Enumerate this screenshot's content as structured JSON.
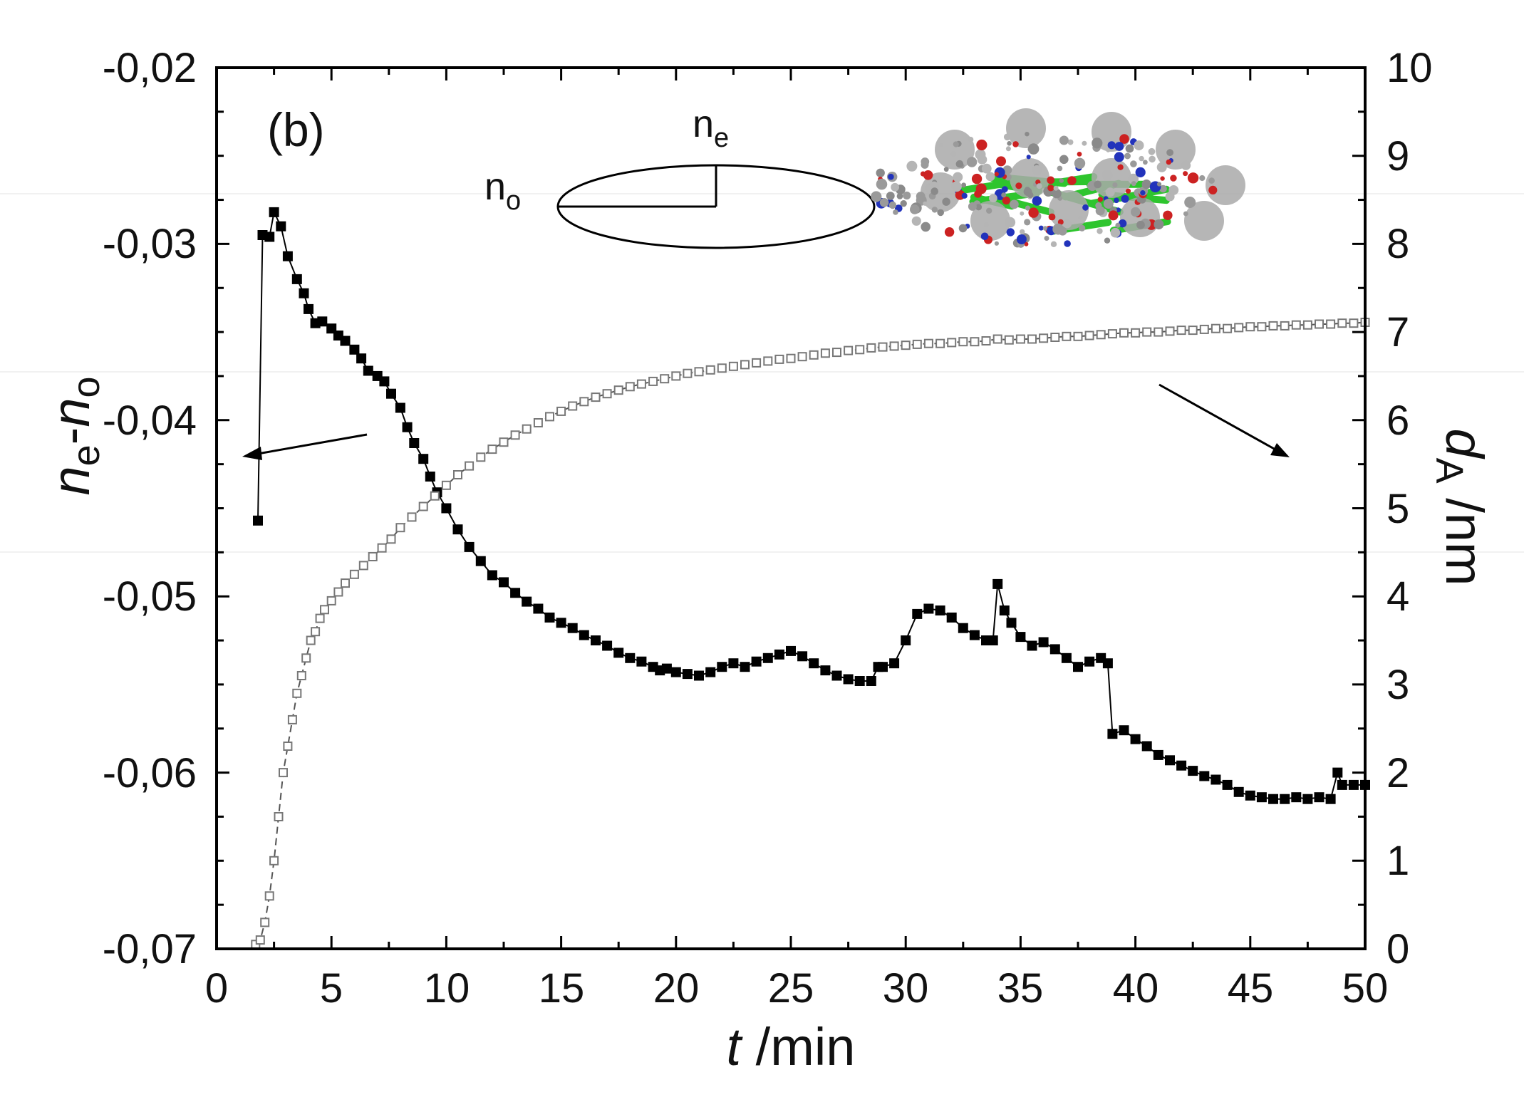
{
  "chart_data": {
    "type": "scatter",
    "panel_label": "(b)",
    "xlabel": {
      "italic": "t",
      "rest": " /min"
    },
    "ylabel_left": {
      "n_main": "n",
      "e_sub": "e",
      "dash": "-",
      "o_main": "n",
      "o_sub": "o"
    },
    "ylabel_right": {
      "d_main": "d",
      "a_sub": "A",
      "rest": " /nm"
    },
    "xlim": [
      0,
      50
    ],
    "ylim_left": [
      -0.07,
      -0.02
    ],
    "ylim_right": [
      0,
      10
    ],
    "xticks": [
      "0",
      "5",
      "10",
      "15",
      "20",
      "25",
      "30",
      "35",
      "40",
      "45",
      "50"
    ],
    "yticks_left": [
      "-0,07",
      "-0,06",
      "-0,05",
      "-0,04",
      "-0,03",
      "-0,02"
    ],
    "yticks_right": [
      "0",
      "1",
      "2",
      "3",
      "4",
      "5",
      "6",
      "7",
      "8",
      "9",
      "10"
    ],
    "ellipse_labels": {
      "no_main": "n",
      "no_sub": "o",
      "ne_main": "n",
      "ne_sub": "e"
    },
    "series": [
      {
        "name": "ne-no",
        "axis": "left",
        "marker": "filled-square",
        "x": [
          1.8,
          2.0,
          2.3,
          2.5,
          2.8,
          3.1,
          3.5,
          3.8,
          4.0,
          4.3,
          4.6,
          5.0,
          5.3,
          5.6,
          6.0,
          6.3,
          6.6,
          7.0,
          7.3,
          7.6,
          8.0,
          8.3,
          8.6,
          9.0,
          9.3,
          9.6,
          10.0,
          10.5,
          11.0,
          11.5,
          12.0,
          12.5,
          13.0,
          13.5,
          14.0,
          14.5,
          15.0,
          15.5,
          16.0,
          16.5,
          17.0,
          17.5,
          18.0,
          18.5,
          19.0,
          19.3,
          19.6,
          20.0,
          20.5,
          21.0,
          21.5,
          22.0,
          22.5,
          23.0,
          23.5,
          24.0,
          24.5,
          25.0,
          25.5,
          26.0,
          26.5,
          27.0,
          27.5,
          28.0,
          28.5,
          28.8,
          29.0,
          29.5,
          30.0,
          30.5,
          31.0,
          31.5,
          32.0,
          32.5,
          33.0,
          33.5,
          33.8,
          34.0,
          34.3,
          34.6,
          35.0,
          35.5,
          36.0,
          36.5,
          37.0,
          37.5,
          38.0,
          38.5,
          38.8,
          39.0,
          39.5,
          40.0,
          40.5,
          41.0,
          41.5,
          42.0,
          42.5,
          43.0,
          43.5,
          44.0,
          44.5,
          45.0,
          45.5,
          46.0,
          46.5,
          47.0,
          47.5,
          48.0,
          48.5,
          48.8,
          49.0,
          49.5,
          50.0
        ],
        "values": [
          -0.0457,
          -0.0295,
          -0.0296,
          -0.0282,
          -0.029,
          -0.0307,
          -0.032,
          -0.0328,
          -0.0337,
          -0.0345,
          -0.0344,
          -0.0348,
          -0.0352,
          -0.0355,
          -0.036,
          -0.0365,
          -0.0372,
          -0.0375,
          -0.0378,
          -0.0385,
          -0.0393,
          -0.0404,
          -0.0413,
          -0.0422,
          -0.0432,
          -0.0441,
          -0.045,
          -0.0462,
          -0.0472,
          -0.048,
          -0.0488,
          -0.0492,
          -0.0498,
          -0.0503,
          -0.0507,
          -0.0512,
          -0.0515,
          -0.0518,
          -0.0522,
          -0.0525,
          -0.0528,
          -0.0532,
          -0.0535,
          -0.0537,
          -0.054,
          -0.0542,
          -0.0541,
          -0.0543,
          -0.0544,
          -0.0545,
          -0.0543,
          -0.054,
          -0.0538,
          -0.054,
          -0.0537,
          -0.0535,
          -0.0533,
          -0.0531,
          -0.0534,
          -0.0538,
          -0.0542,
          -0.0545,
          -0.0547,
          -0.0548,
          -0.0548,
          -0.054,
          -0.054,
          -0.0538,
          -0.0525,
          -0.051,
          -0.0507,
          -0.0508,
          -0.0512,
          -0.0518,
          -0.0522,
          -0.0525,
          -0.0525,
          -0.0493,
          -0.0508,
          -0.0515,
          -0.0523,
          -0.0528,
          -0.0526,
          -0.053,
          -0.0535,
          -0.054,
          -0.0537,
          -0.0535,
          -0.0538,
          -0.0578,
          -0.0576,
          -0.0581,
          -0.0585,
          -0.059,
          -0.0593,
          -0.0596,
          -0.0599,
          -0.0602,
          -0.0604,
          -0.0607,
          -0.0611,
          -0.0613,
          -0.0614,
          -0.0615,
          -0.0615,
          -0.0614,
          -0.0615,
          -0.0614,
          -0.0615,
          -0.06,
          -0.0607,
          -0.0607,
          -0.0607
        ]
      },
      {
        "name": "dA",
        "axis": "right",
        "marker": "open-square",
        "x": [
          1.7,
          1.9,
          2.1,
          2.3,
          2.5,
          2.7,
          2.9,
          3.1,
          3.3,
          3.5,
          3.7,
          3.9,
          4.1,
          4.3,
          4.5,
          4.7,
          5.0,
          5.3,
          5.6,
          6.0,
          6.4,
          6.8,
          7.2,
          7.6,
          8.0,
          8.5,
          9.0,
          9.5,
          10.0,
          10.5,
          11.0,
          11.5,
          12.0,
          12.5,
          13.0,
          13.5,
          14.0,
          14.5,
          15.0,
          15.5,
          16.0,
          16.5,
          17.0,
          17.5,
          18.0,
          18.5,
          19.0,
          19.5,
          20.0,
          20.5,
          21.0,
          21.5,
          22.0,
          22.5,
          23.0,
          23.5,
          24.0,
          24.5,
          25.0,
          25.5,
          26.0,
          26.5,
          27.0,
          27.5,
          28.0,
          28.5,
          29.0,
          29.5,
          30.0,
          30.5,
          31.0,
          31.5,
          32.0,
          32.5,
          33.0,
          33.5,
          34.0,
          34.5,
          35.0,
          35.5,
          36.0,
          36.5,
          37.0,
          37.5,
          38.0,
          38.5,
          39.0,
          39.5,
          40.0,
          40.5,
          41.0,
          41.5,
          42.0,
          42.5,
          43.0,
          43.5,
          44.0,
          44.5,
          45.0,
          45.5,
          46.0,
          46.5,
          47.0,
          47.5,
          48.0,
          48.5,
          49.0,
          49.5,
          50.0
        ],
        "values": [
          0.05,
          0.1,
          0.3,
          0.6,
          1.0,
          1.5,
          2.0,
          2.3,
          2.6,
          2.9,
          3.1,
          3.3,
          3.5,
          3.6,
          3.75,
          3.85,
          3.95,
          4.05,
          4.15,
          4.25,
          4.35,
          4.45,
          4.55,
          4.65,
          4.78,
          4.9,
          5.02,
          5.14,
          5.26,
          5.38,
          5.48,
          5.58,
          5.67,
          5.75,
          5.83,
          5.9,
          5.97,
          6.04,
          6.1,
          6.16,
          6.21,
          6.26,
          6.3,
          6.34,
          6.38,
          6.41,
          6.44,
          6.47,
          6.5,
          6.53,
          6.55,
          6.57,
          6.59,
          6.61,
          6.63,
          6.65,
          6.67,
          6.69,
          6.7,
          6.72,
          6.74,
          6.76,
          6.77,
          6.79,
          6.8,
          6.82,
          6.83,
          6.84,
          6.85,
          6.86,
          6.87,
          6.87,
          6.88,
          6.89,
          6.89,
          6.9,
          6.92,
          6.91,
          6.92,
          6.92,
          6.93,
          6.94,
          6.95,
          6.95,
          6.96,
          6.97,
          6.98,
          6.99,
          6.99,
          7.0,
          7.0,
          7.01,
          7.02,
          7.02,
          7.03,
          7.04,
          7.04,
          7.05,
          7.06,
          7.06,
          7.07,
          7.07,
          7.08,
          7.08,
          7.09,
          7.09,
          7.1,
          7.1,
          7.11
        ]
      }
    ]
  }
}
